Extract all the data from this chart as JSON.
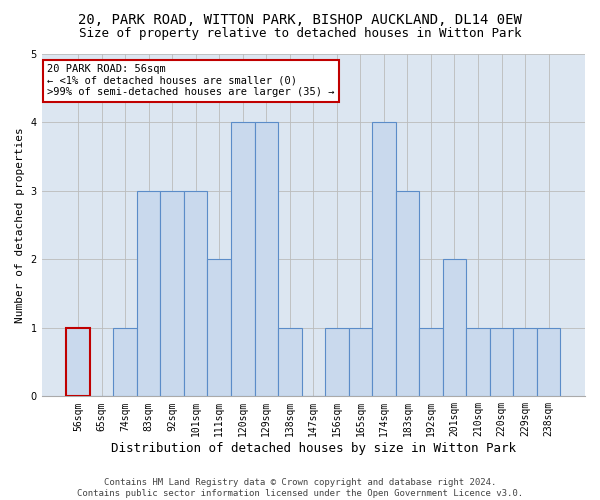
{
  "title_line1": "20, PARK ROAD, WITTON PARK, BISHOP AUCKLAND, DL14 0EW",
  "title_line2": "Size of property relative to detached houses in Witton Park",
  "xlabel": "Distribution of detached houses by size in Witton Park",
  "ylabel": "Number of detached properties",
  "categories": [
    "56sqm",
    "65sqm",
    "74sqm",
    "83sqm",
    "92sqm",
    "101sqm",
    "111sqm",
    "120sqm",
    "129sqm",
    "138sqm",
    "147sqm",
    "156sqm",
    "165sqm",
    "174sqm",
    "183sqm",
    "192sqm",
    "201sqm",
    "210sqm",
    "220sqm",
    "229sqm",
    "238sqm"
  ],
  "values": [
    1,
    0,
    1,
    3,
    3,
    3,
    2,
    4,
    4,
    1,
    0,
    1,
    1,
    4,
    3,
    1,
    2,
    1,
    1,
    1,
    1
  ],
  "bar_color": "#c9d9ed",
  "bar_edge_color": "#5b8cc8",
  "highlight_index": 0,
  "highlight_bar_edge_color": "#c00000",
  "annotation_box_text": "20 PARK ROAD: 56sqm\n← <1% of detached houses are smaller (0)\n>99% of semi-detached houses are larger (35) →",
  "annotation_box_edge_color": "#c00000",
  "annotation_box_face_color": "#ffffff",
  "ylim": [
    0,
    5
  ],
  "yticks": [
    0,
    1,
    2,
    3,
    4,
    5
  ],
  "grid_color": "#bbbbbb",
  "bg_color": "#dce6f1",
  "footnote": "Contains HM Land Registry data © Crown copyright and database right 2024.\nContains public sector information licensed under the Open Government Licence v3.0.",
  "title_fontsize": 10,
  "subtitle_fontsize": 9,
  "xlabel_fontsize": 9,
  "ylabel_fontsize": 8,
  "tick_fontsize": 7,
  "annot_fontsize": 7.5,
  "footnote_fontsize": 6.5
}
